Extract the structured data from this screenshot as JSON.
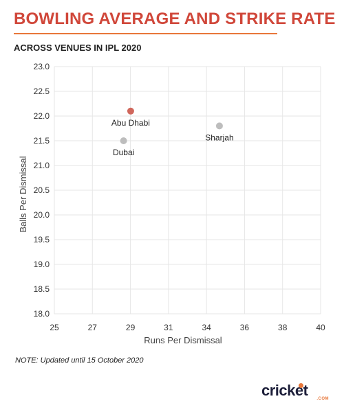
{
  "title": "BOWLING AVERAGE AND STRIKE RATE",
  "subtitle": "ACROSS VENUES IN IPL 2020",
  "note": "NOTE: Updated until 15 October 2020",
  "logo": {
    "text": "cricket",
    "suffix": ".COM"
  },
  "colors": {
    "highlight": "#d0675c",
    "point": "#bdbdbd",
    "title": "#d0473a",
    "accent": "#e8773a"
  },
  "chart_data": {
    "type": "scatter",
    "xlabel": "Runs Per Dismissal",
    "ylabel": "Balls Per Dismissal",
    "xlim": [
      25,
      40
    ],
    "ylim": [
      18.0,
      23.0
    ],
    "xticks": [
      "25",
      "27",
      "29",
      "31",
      "34",
      "36",
      "38",
      "40"
    ],
    "yticks": [
      "18.0",
      "18.5",
      "19.0",
      "19.5",
      "20.0",
      "20.5",
      "21.0",
      "21.5",
      "22.0",
      "22.5",
      "23.0"
    ],
    "grid": true,
    "points": [
      {
        "label": "Abu Dhabi",
        "x": 29.3,
        "y": 22.1,
        "highlight": true
      },
      {
        "label": "Sharjah",
        "x": 34.3,
        "y": 21.8,
        "highlight": false
      },
      {
        "label": "Dubai",
        "x": 28.9,
        "y": 21.5,
        "highlight": false
      }
    ]
  }
}
